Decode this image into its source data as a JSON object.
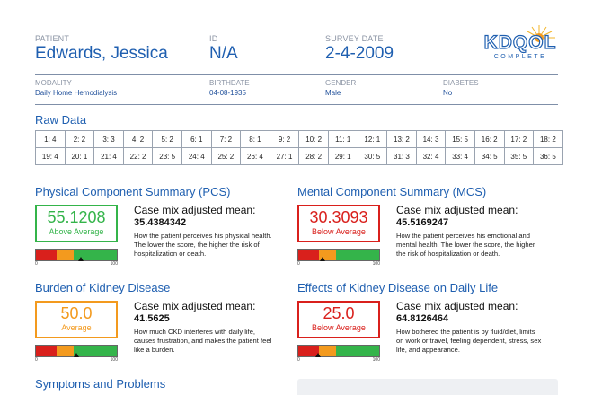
{
  "header": {
    "patient_label": "PATIENT",
    "patient_name": "Edwards, Jessica",
    "id_label": "ID",
    "id_value": "N/A",
    "survey_date_label": "SURVEY DATE",
    "survey_date": "2-4-2009",
    "logo_text": "KDQOL",
    "logo_subtext": "COMPLETE"
  },
  "info": {
    "modality_label": "MODALITY",
    "modality": "Daily Home Hemodialysis",
    "birthdate_label": "BIRTHDATE",
    "birthdate": "04-08-1935",
    "gender_label": "GENDER",
    "gender": "Male",
    "diabetes_label": "DIABETES",
    "diabetes": "No"
  },
  "raw_data": {
    "title": "Raw Data",
    "rows": [
      [
        "1: 4",
        "2: 2",
        "3: 3",
        "4: 2",
        "5: 2",
        "6: 1",
        "7: 2",
        "8: 1",
        "9: 2",
        "10: 2",
        "11: 1",
        "12: 1",
        "13: 2",
        "14: 3",
        "15: 5",
        "16: 2",
        "17: 2",
        "18: 2"
      ],
      [
        "19: 4",
        "20: 1",
        "21: 4",
        "22: 2",
        "23: 5",
        "24: 4",
        "25: 2",
        "26: 4",
        "27: 1",
        "28: 2",
        "29: 1",
        "30: 5",
        "31: 3",
        "32: 4",
        "33: 4",
        "34: 5",
        "35: 5",
        "36: 5"
      ]
    ]
  },
  "colors": {
    "red": "#d9201c",
    "orange": "#f39a1e",
    "green": "#34b44a",
    "blue": "#1f5fb0"
  },
  "sections": {
    "pcs": {
      "title": "Physical Component Summary (PCS)",
      "score": "55.1208",
      "status": "Above Average",
      "cm_title": "Case mix adjusted mean:",
      "cm_value": "35.4384342",
      "description": "How the patient perceives his physical health. The lower the score, the higher the risk of hospitalization or death.",
      "marker_percent": 55,
      "scale_min": "0",
      "scale_max": "100"
    },
    "mcs": {
      "title": "Mental Component Summary (MCS)",
      "score": "30.3093",
      "status": "Below Average",
      "cm_title": "Case mix adjusted mean:",
      "cm_value": "45.5169247",
      "description": "How the patient perceives his emotional and mental health. The lower the score, the higher the risk of hospitalization or death.",
      "marker_percent": 30,
      "scale_min": "0",
      "scale_max": "100"
    },
    "burden": {
      "title": "Burden of Kidney Disease",
      "score": "50.0",
      "status": "Average",
      "cm_title": "Case mix adjusted mean:",
      "cm_value": "41.5625",
      "description": "How much CKD interferes with daily life, causes frustration, and makes the patient feel like a burden.",
      "marker_percent": 50,
      "scale_min": "0",
      "scale_max": "100"
    },
    "effects": {
      "title": "Effects of Kidney Disease on Daily Life",
      "score": "25.0",
      "status": "Below Average",
      "cm_title": "Case mix adjusted mean:",
      "cm_value": "64.8126464",
      "description": "How bothered the patient is by fluid/diet, limits on work or travel, feeling dependent, stress, sex life, and appearance.",
      "marker_percent": 25,
      "scale_min": "0",
      "scale_max": "100"
    },
    "symptoms": {
      "title": "Symptoms and Problems"
    }
  }
}
